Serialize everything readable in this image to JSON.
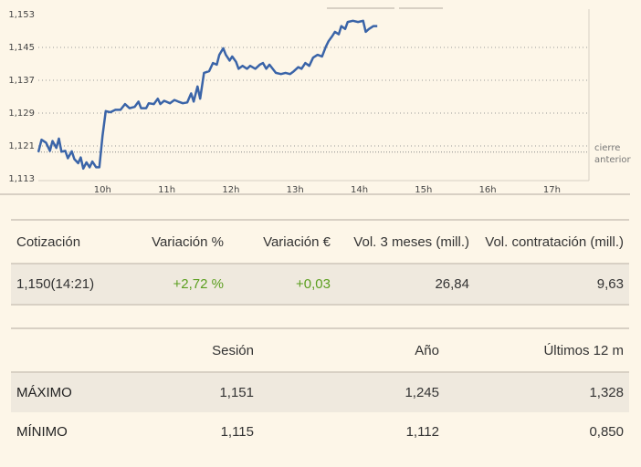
{
  "chart_data": {
    "type": "line",
    "yticks": [
      "1,153",
      "1,145",
      "1,137",
      "1,129",
      "1,121",
      "1,113"
    ],
    "ylim": [
      1.113,
      1.153
    ],
    "xticks": [
      "10h",
      "11h",
      "12h",
      "13h",
      "14h",
      "15h",
      "16h",
      "17h"
    ],
    "reference_label": [
      "cierre",
      "anterior"
    ],
    "reference_value": 1.1195,
    "color": "#3a64a8",
    "series": [
      {
        "values": [
          [
            9.0,
            1.1195
          ],
          [
            9.05,
            1.1225
          ],
          [
            9.12,
            1.1218
          ],
          [
            9.18,
            1.1198
          ],
          [
            9.22,
            1.1222
          ],
          [
            9.28,
            1.1205
          ],
          [
            9.32,
            1.1228
          ],
          [
            9.36,
            1.1196
          ],
          [
            9.42,
            1.1198
          ],
          [
            9.46,
            1.118
          ],
          [
            9.52,
            1.1197
          ],
          [
            9.56,
            1.1178
          ],
          [
            9.62,
            1.1168
          ],
          [
            9.66,
            1.1182
          ],
          [
            9.7,
            1.1155
          ],
          [
            9.75,
            1.117
          ],
          [
            9.8,
            1.1158
          ],
          [
            9.84,
            1.1172
          ],
          [
            9.9,
            1.1158
          ],
          [
            9.95,
            1.1158
          ],
          [
            10.0,
            1.1235
          ],
          [
            10.05,
            1.1295
          ],
          [
            10.12,
            1.1292
          ],
          [
            10.2,
            1.1298
          ],
          [
            10.28,
            1.1298
          ],
          [
            10.35,
            1.1312
          ],
          [
            10.42,
            1.1302
          ],
          [
            10.5,
            1.1305
          ],
          [
            10.56,
            1.1318
          ],
          [
            10.6,
            1.1302
          ],
          [
            10.68,
            1.1302
          ],
          [
            10.72,
            1.1314
          ],
          [
            10.8,
            1.1312
          ],
          [
            10.86,
            1.1325
          ],
          [
            10.9,
            1.1312
          ],
          [
            10.96,
            1.132
          ],
          [
            11.05,
            1.1314
          ],
          [
            11.12,
            1.1322
          ],
          [
            11.18,
            1.1318
          ],
          [
            11.25,
            1.1314
          ],
          [
            11.32,
            1.1316
          ],
          [
            11.38,
            1.1338
          ],
          [
            11.42,
            1.1318
          ],
          [
            11.48,
            1.1355
          ],
          [
            11.52,
            1.1325
          ],
          [
            11.58,
            1.1388
          ],
          [
            11.66,
            1.1392
          ],
          [
            11.72,
            1.1412
          ],
          [
            11.78,
            1.1408
          ],
          [
            11.82,
            1.1432
          ],
          [
            11.88,
            1.1448
          ],
          [
            11.92,
            1.1432
          ],
          [
            11.98,
            1.1418
          ],
          [
            12.02,
            1.1428
          ],
          [
            12.08,
            1.1415
          ],
          [
            12.12,
            1.1398
          ],
          [
            12.18,
            1.1405
          ],
          [
            12.25,
            1.1398
          ],
          [
            12.3,
            1.1405
          ],
          [
            12.38,
            1.1398
          ],
          [
            12.45,
            1.1408
          ],
          [
            12.5,
            1.1412
          ],
          [
            12.55,
            1.1398
          ],
          [
            12.6,
            1.1408
          ],
          [
            12.65,
            1.1398
          ],
          [
            12.7,
            1.1388
          ],
          [
            12.78,
            1.1385
          ],
          [
            12.85,
            1.1388
          ],
          [
            12.92,
            1.1385
          ],
          [
            12.98,
            1.1392
          ],
          [
            13.05,
            1.1402
          ],
          [
            13.1,
            1.1398
          ],
          [
            13.16,
            1.1412
          ],
          [
            13.22,
            1.1405
          ],
          [
            13.28,
            1.1425
          ],
          [
            13.35,
            1.1432
          ],
          [
            13.42,
            1.1428
          ],
          [
            13.48,
            1.1452
          ],
          [
            13.52,
            1.1465
          ],
          [
            13.58,
            1.1478
          ],
          [
            13.62,
            1.1488
          ],
          [
            13.68,
            1.1482
          ],
          [
            13.72,
            1.1502
          ],
          [
            13.78,
            1.1495
          ],
          [
            13.82,
            1.1512
          ],
          [
            13.9,
            1.1515
          ],
          [
            13.98,
            1.1512
          ],
          [
            14.06,
            1.1515
          ],
          [
            14.1,
            1.1488
          ],
          [
            14.15,
            1.1495
          ],
          [
            14.22,
            1.1502
          ],
          [
            14.28,
            1.1502
          ]
        ]
      }
    ]
  },
  "quote": {
    "headers": [
      "Cotización",
      "Variación %",
      "Variación €",
      "Vol. 3 meses (mill.)",
      "Vol. contratación (mill.)"
    ],
    "values": [
      "1,150(14:21)",
      "+2,72 %",
      "+0,03",
      "26,84",
      "9,63"
    ]
  },
  "ranges": {
    "headers": [
      "",
      "Sesión",
      "Año",
      "Últimos 12 m"
    ],
    "rows": [
      {
        "label": "MÁXIMO",
        "values": [
          "1,151",
          "1,245",
          "1,328"
        ]
      },
      {
        "label": "MÍNIMO",
        "values": [
          "1,115",
          "1,112",
          "0,850"
        ]
      }
    ]
  }
}
